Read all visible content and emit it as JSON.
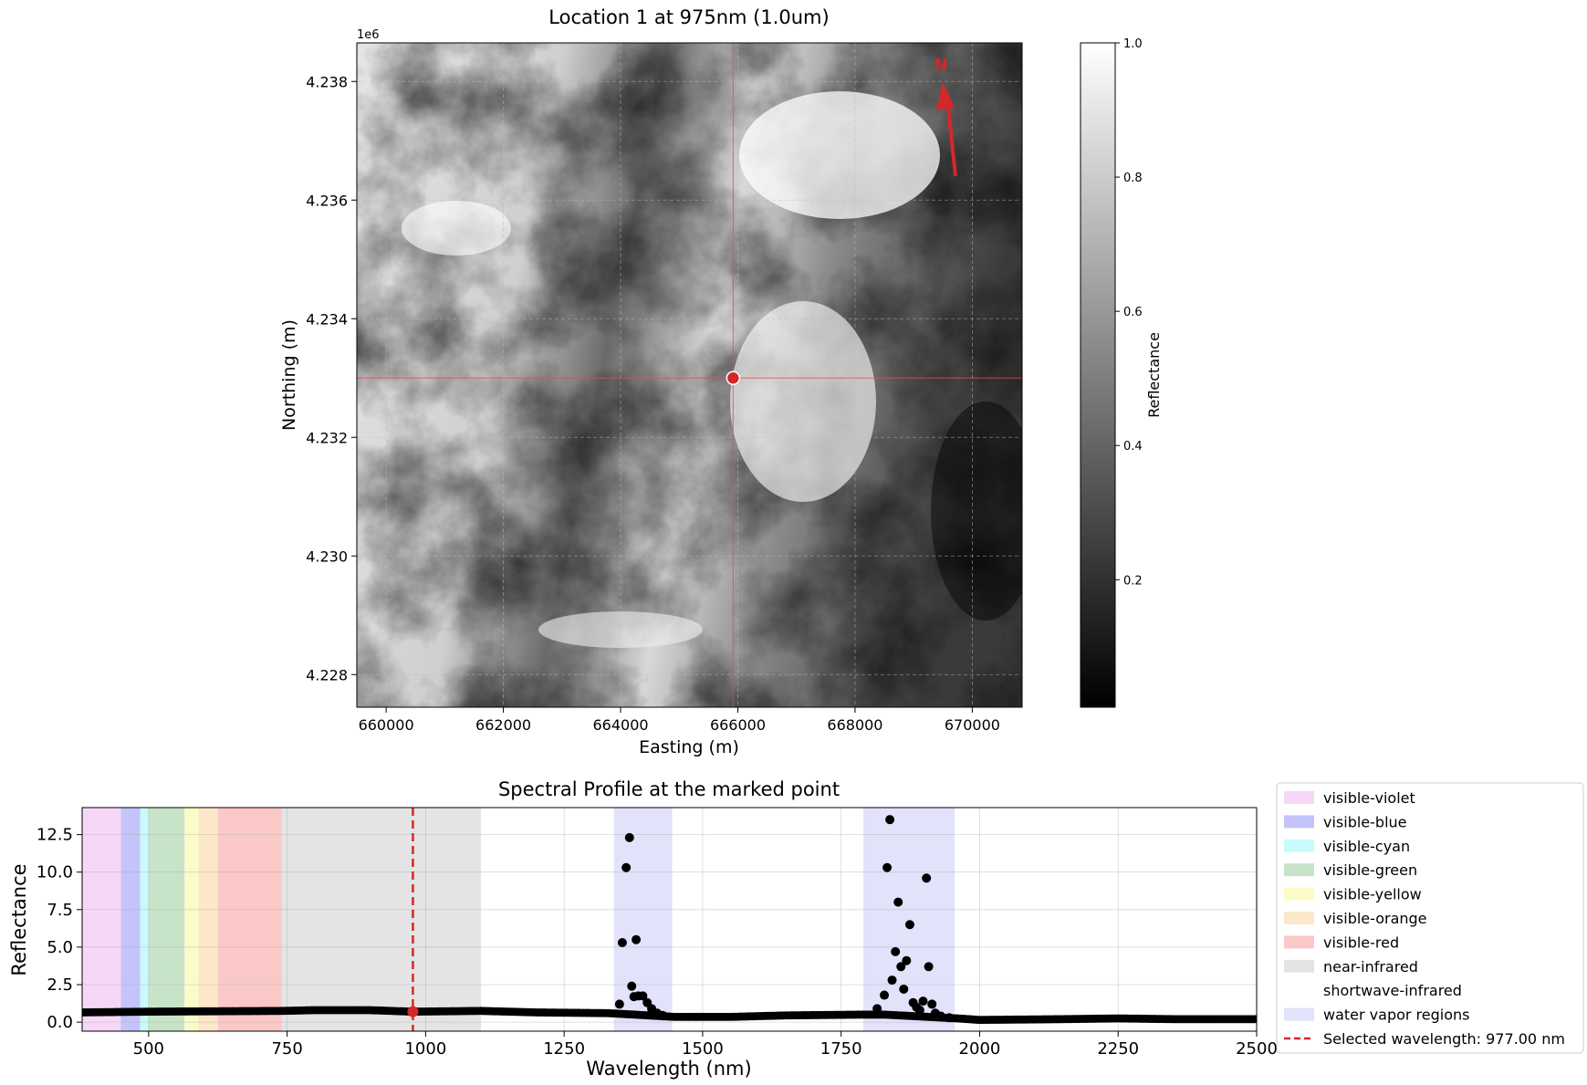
{
  "colors": {
    "marker_red": "#d62728",
    "crosshair": "#e05050",
    "scatter_black": "#000000",
    "arrow_red": "#d62728"
  },
  "chart_data": [
    {
      "type": "heatmap",
      "title": "Location 1 at 975nm (1.0um)",
      "xlabel": "Easting (m)",
      "ylabel": "Northing (m)",
      "x_offset_label": "",
      "y_offset_label": "1e6",
      "xlim": [
        659500,
        670850
      ],
      "ylim": [
        4.22745,
        4.23865
      ],
      "x_ticks": [
        660000,
        662000,
        664000,
        666000,
        668000,
        670000
      ],
      "x_tick_labels": [
        "660000",
        "662000",
        "664000",
        "666000",
        "668000",
        "670000"
      ],
      "y_ticks": [
        4.228,
        4.23,
        4.232,
        4.234,
        4.236,
        4.238
      ],
      "y_tick_labels": [
        "4.228",
        "4.230",
        "4.232",
        "4.234",
        "4.236",
        "4.238"
      ],
      "grid": true,
      "colormap": "gray",
      "colorbar": {
        "label": "Reflectance",
        "range": [
          0.01,
          1.0
        ],
        "ticks": [
          0.2,
          0.4,
          0.6,
          0.8,
          1.0
        ],
        "tick_labels": [
          "0.2",
          "0.4",
          "0.6",
          "0.8",
          "1.0"
        ]
      },
      "marked_point": {
        "easting": 665920,
        "northing": 4.233
      },
      "north_arrow": {
        "label": "N"
      }
    },
    {
      "type": "scatter",
      "title": "Spectral Profile at the marked point",
      "xlabel": "Wavelength (nm)",
      "ylabel": "Reflectance",
      "xlim": [
        380,
        2500
      ],
      "ylim": [
        -0.6,
        14.3
      ],
      "x_ticks": [
        500,
        750,
        1000,
        1250,
        1500,
        1750,
        2000,
        2250,
        2500
      ],
      "x_tick_labels": [
        "500",
        "750",
        "1000",
        "1250",
        "1500",
        "1750",
        "2000",
        "2250",
        "2500"
      ],
      "y_ticks": [
        0.0,
        2.5,
        5.0,
        7.5,
        10.0,
        12.5
      ],
      "y_tick_labels": [
        "0.0",
        "2.5",
        "5.0",
        "7.5",
        "10.0",
        "12.5"
      ],
      "grid": true,
      "regions": [
        {
          "name": "visible-violet",
          "start": 380,
          "end": 450,
          "color": "#f7d7f7"
        },
        {
          "name": "visible-blue",
          "start": 450,
          "end": 485,
          "color": "#c4c4fb"
        },
        {
          "name": "visible-cyan",
          "start": 485,
          "end": 500,
          "color": "#c8fbfb"
        },
        {
          "name": "visible-green",
          "start": 500,
          "end": 565,
          "color": "#c8e4c8"
        },
        {
          "name": "visible-yellow",
          "start": 565,
          "end": 590,
          "color": "#fbfbc8"
        },
        {
          "name": "visible-orange",
          "start": 590,
          "end": 625,
          "color": "#fbe8c8"
        },
        {
          "name": "visible-red",
          "start": 625,
          "end": 740,
          "color": "#fbc8c8"
        },
        {
          "name": "near-infrared",
          "start": 740,
          "end": 1100,
          "color": "#e4e4e4"
        },
        {
          "name": "shortwave-infrared",
          "start": 1100,
          "end": 2500,
          "color": "#ffffff"
        },
        {
          "name": "water vapor regions",
          "start": 1340,
          "end": 1445,
          "color": "#e2e2fb"
        },
        {
          "name": "water vapor regions",
          "start": 1790,
          "end": 1955,
          "color": "#e2e2fb"
        }
      ],
      "baseline": [
        [
          380,
          0.65
        ],
        [
          500,
          0.7
        ],
        [
          740,
          0.75
        ],
        [
          800,
          0.8
        ],
        [
          900,
          0.8
        ],
        [
          975,
          0.7
        ],
        [
          1100,
          0.75
        ],
        [
          1200,
          0.65
        ],
        [
          1330,
          0.6
        ],
        [
          1450,
          0.35
        ],
        [
          1550,
          0.35
        ],
        [
          1650,
          0.45
        ],
        [
          1780,
          0.5
        ],
        [
          1830,
          0.5
        ],
        [
          1960,
          0.25
        ],
        [
          2000,
          0.15
        ],
        [
          2150,
          0.2
        ],
        [
          2250,
          0.25
        ],
        [
          2350,
          0.2
        ],
        [
          2500,
          0.2
        ]
      ],
      "points": [
        [
          1350,
          1.2
        ],
        [
          1355,
          5.3
        ],
        [
          1362,
          10.3
        ],
        [
          1368,
          12.3
        ],
        [
          1372,
          2.4
        ],
        [
          1376,
          1.7
        ],
        [
          1380,
          5.5
        ],
        [
          1384,
          1.75
        ],
        [
          1392,
          1.75
        ],
        [
          1400,
          1.3
        ],
        [
          1408,
          0.9
        ],
        [
          1418,
          0.6
        ],
        [
          1428,
          0.45
        ],
        [
          1815,
          0.9
        ],
        [
          1828,
          1.8
        ],
        [
          1833,
          10.3
        ],
        [
          1838,
          13.5
        ],
        [
          1842,
          2.8
        ],
        [
          1848,
          4.7
        ],
        [
          1853,
          8.0
        ],
        [
          1858,
          3.7
        ],
        [
          1863,
          2.2
        ],
        [
          1868,
          4.1
        ],
        [
          1874,
          6.5
        ],
        [
          1880,
          1.3
        ],
        [
          1886,
          1.0
        ],
        [
          1892,
          0.8
        ],
        [
          1898,
          1.4
        ],
        [
          1904,
          9.6
        ],
        [
          1908,
          3.7
        ],
        [
          1914,
          1.2
        ],
        [
          1920,
          0.6
        ],
        [
          1930,
          0.4
        ],
        [
          1945,
          0.3
        ]
      ],
      "selected_wavelength": 977.0,
      "selected_value": 0.7,
      "legend": {
        "placement": "right",
        "entries": [
          "visible-violet",
          "visible-blue",
          "visible-cyan",
          "visible-green",
          "visible-yellow",
          "visible-orange",
          "visible-red",
          "near-infrared",
          "shortwave-infrared",
          "water vapor regions",
          "Selected wavelength: 977.00 nm"
        ]
      }
    }
  ]
}
